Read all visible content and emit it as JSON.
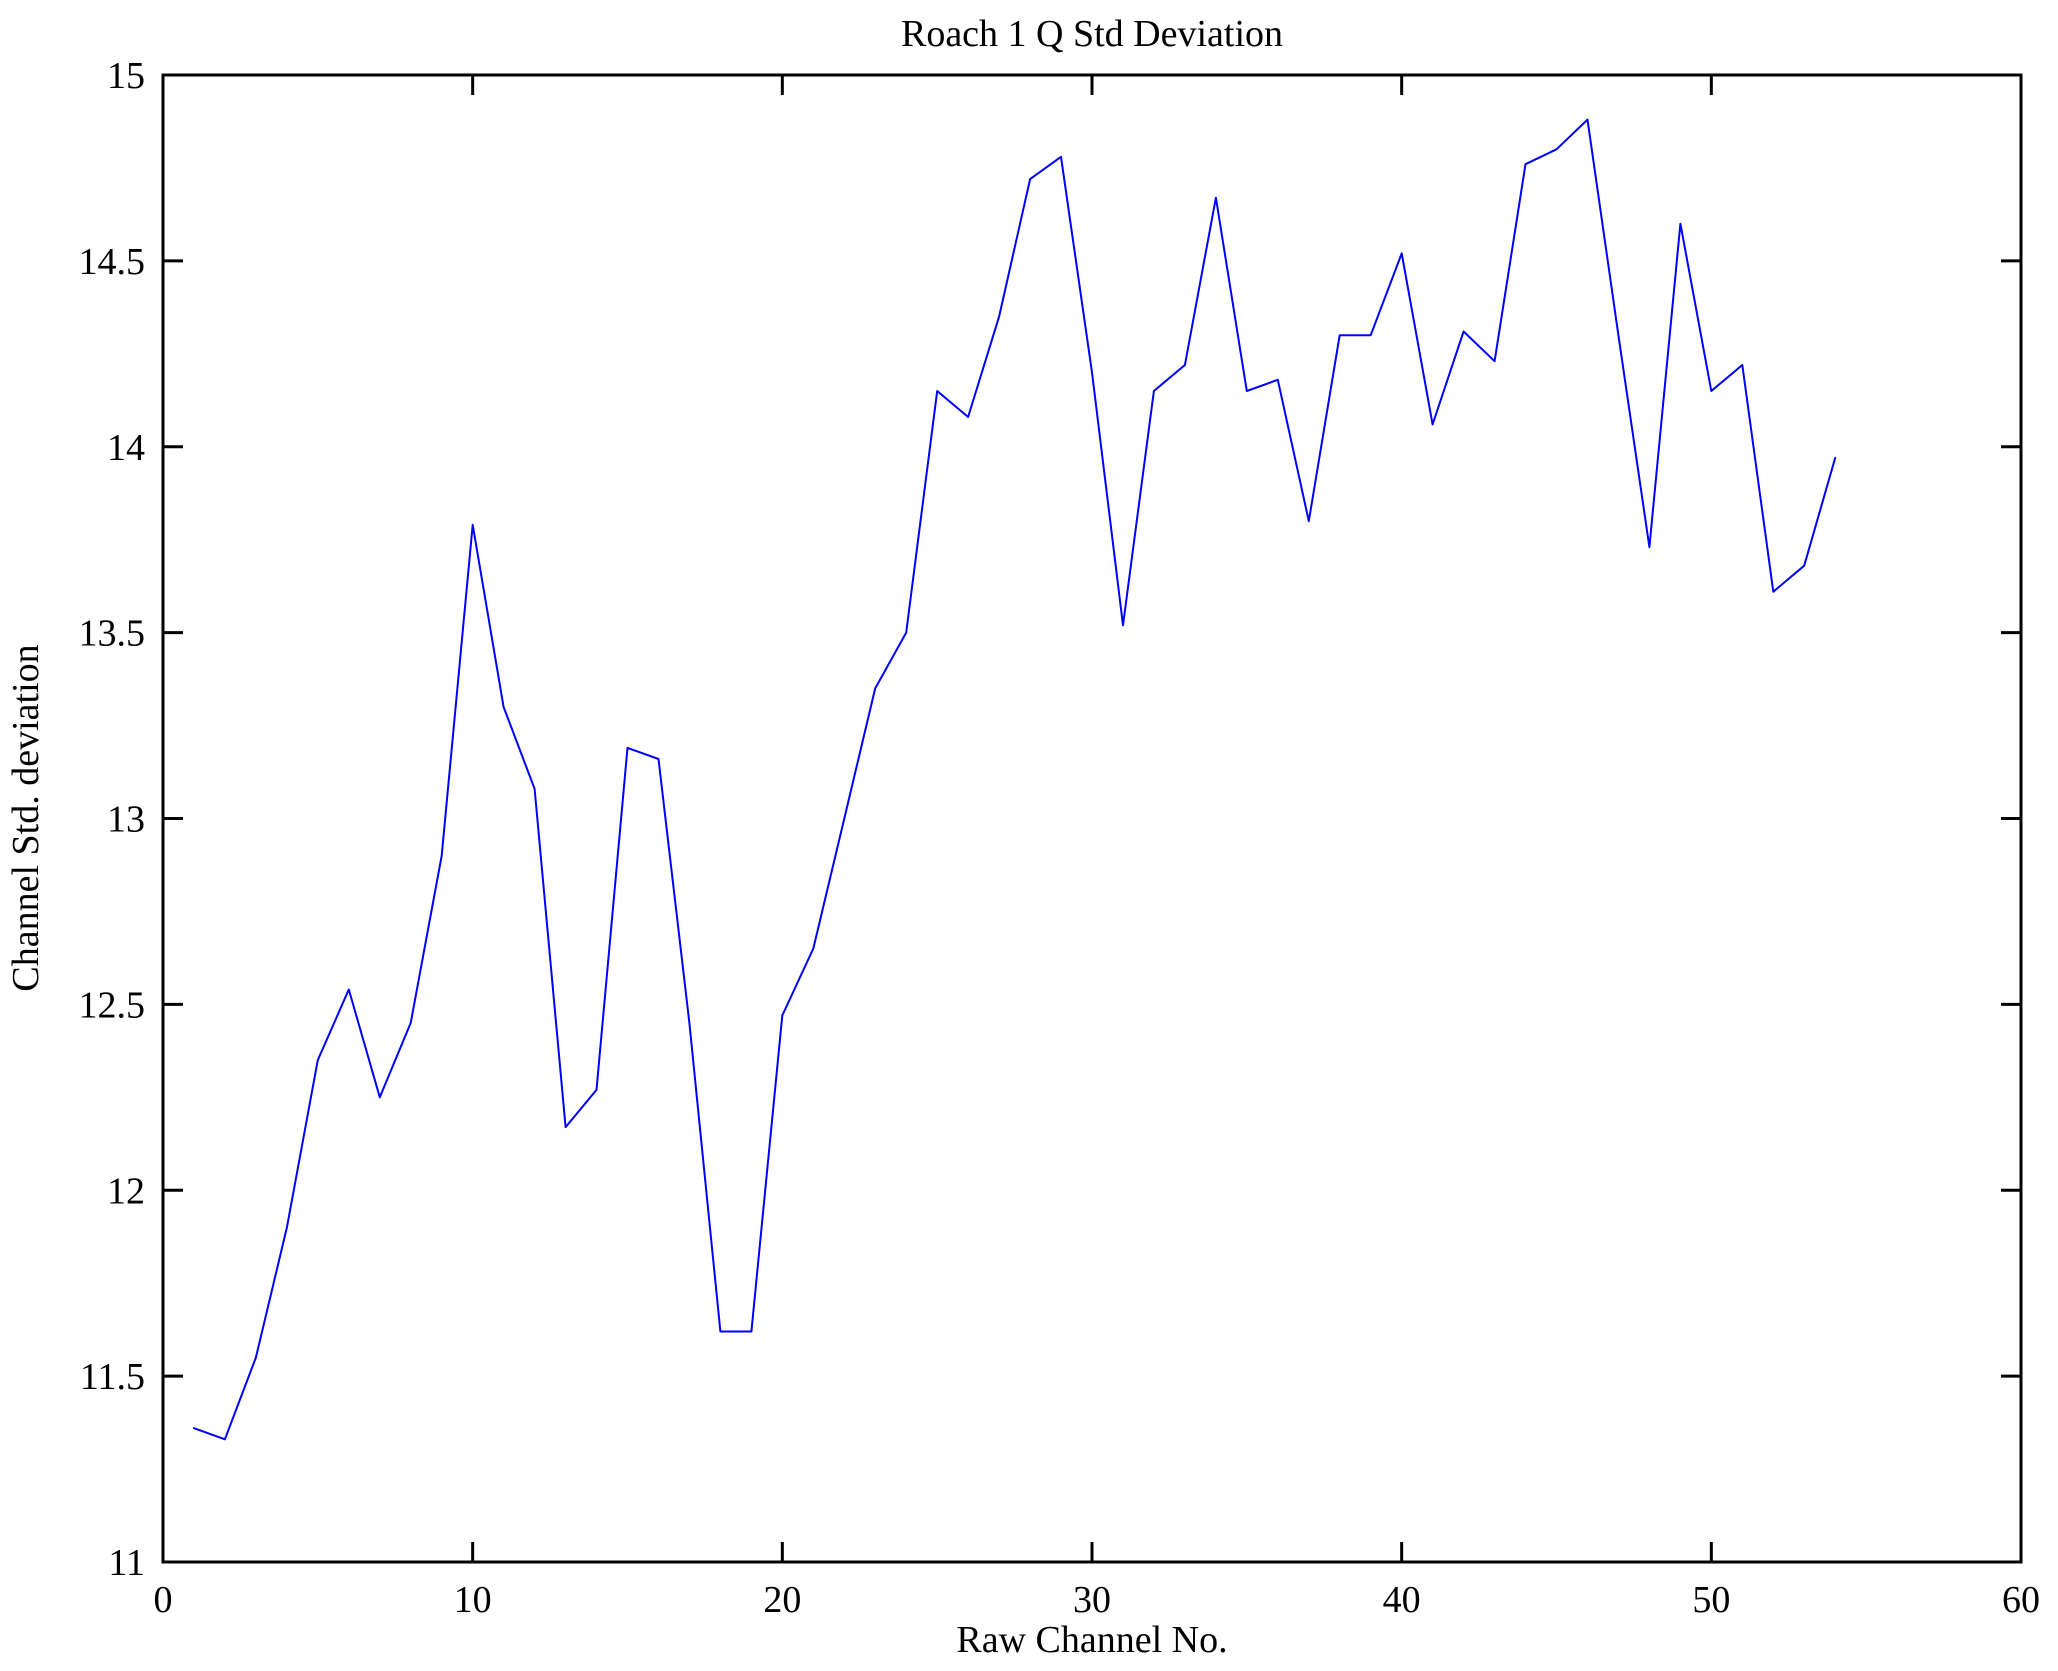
{
  "figure": {
    "background": "#ffffff",
    "axis_color": "#000000",
    "line_color": "#0000ff"
  },
  "chart_data": {
    "type": "line",
    "title": "Roach 1 Q Std Deviation",
    "xlabel": "Raw Channel No.",
    "ylabel": "Channel Std. deviation",
    "xlim": [
      0,
      60
    ],
    "ylim": [
      11,
      15
    ],
    "x_ticks": [
      0,
      10,
      20,
      30,
      40,
      50,
      60
    ],
    "y_ticks": [
      11,
      11.5,
      12,
      12.5,
      13,
      13.5,
      14,
      14.5,
      15
    ],
    "grid": false,
    "legend": null,
    "series": [
      {
        "name": "Channel Std. deviation",
        "x": [
          1,
          2,
          3,
          4,
          5,
          6,
          7,
          8,
          9,
          10,
          11,
          12,
          13,
          14,
          15,
          16,
          17,
          18,
          19,
          20,
          21,
          22,
          23,
          24,
          25,
          26,
          27,
          28,
          29,
          30,
          31,
          32,
          33,
          34,
          35,
          36,
          37,
          38,
          39,
          40,
          41,
          42,
          43,
          44,
          45,
          46,
          47,
          48,
          49,
          50,
          51,
          52,
          53,
          54
        ],
        "values": [
          11.36,
          11.33,
          11.55,
          11.9,
          12.35,
          12.54,
          12.25,
          12.45,
          12.9,
          13.79,
          13.3,
          13.08,
          12.17,
          12.27,
          13.19,
          13.16,
          12.45,
          11.62,
          11.62,
          12.47,
          12.65,
          13.0,
          13.35,
          13.5,
          14.15,
          14.08,
          14.35,
          14.72,
          14.78,
          14.2,
          13.52,
          14.15,
          14.22,
          14.67,
          14.15,
          14.18,
          13.8,
          14.3,
          14.3,
          14.52,
          14.06,
          14.31,
          14.23,
          14.76,
          14.8,
          14.88,
          14.3,
          13.73,
          14.6,
          14.15,
          14.22,
          13.61,
          13.68,
          13.97
        ],
        "color": "#0000ff"
      }
    ]
  }
}
